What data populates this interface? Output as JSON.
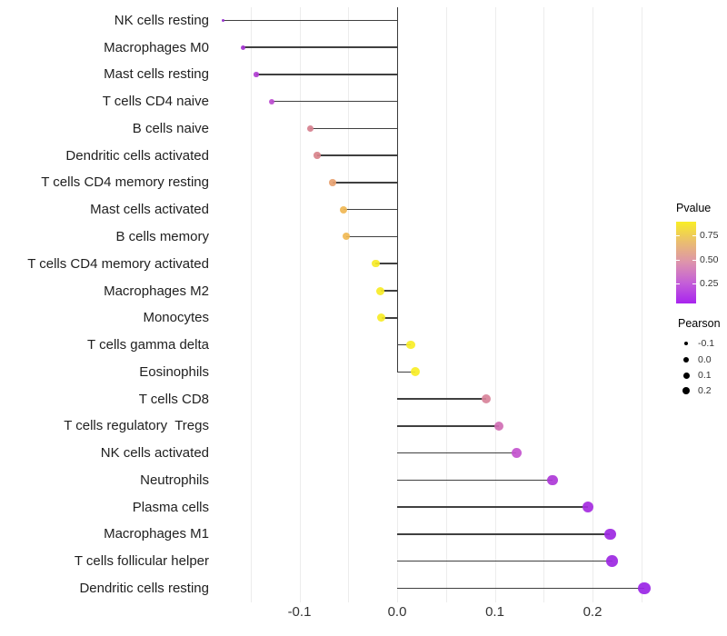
{
  "chart_data": {
    "type": "lollipop",
    "orientation": "horizontal",
    "title": "",
    "xlabel": "",
    "ylabel": "",
    "xlim": [
      -0.186,
      0.261
    ],
    "grid": true,
    "x_gridline_values": [
      -0.15,
      -0.1,
      -0.05,
      0.05,
      0.1,
      0.15,
      0.2,
      0.25
    ],
    "zero_axis_value": 0.0,
    "x_ticks": [
      {
        "value": -0.1,
        "label": "-0.1"
      },
      {
        "value": 0.0,
        "label": "0.0"
      },
      {
        "value": 0.1,
        "label": "0.1"
      },
      {
        "value": 0.2,
        "label": "0.2"
      }
    ],
    "categories": [
      "NK cells resting",
      "Macrophages M0",
      "Mast cells resting",
      "T cells CD4 naive",
      "B cells naive",
      "Dendritic cells activated",
      "T cells CD4 memory resting",
      "Mast cells activated",
      "B cells memory",
      "T cells CD4 memory activated",
      "Macrophages M2",
      "Monocytes",
      "T cells gamma delta",
      "Eosinophils",
      "T cells CD8",
      "T cells regulatory  Tregs",
      "NK cells activated",
      "Neutrophils",
      "Plasma cells",
      "Macrophages M1",
      "T cells follicular helper",
      "Dendritic cells resting"
    ],
    "series": [
      {
        "name": "Pearson",
        "values": [
          -0.178,
          -0.158,
          -0.144,
          -0.128,
          -0.089,
          -0.082,
          -0.066,
          -0.055,
          -0.052,
          -0.022,
          -0.017,
          -0.016,
          0.014,
          0.019,
          0.091,
          0.104,
          0.122,
          0.159,
          0.195,
          0.218,
          0.22,
          0.253
        ]
      }
    ],
    "point_colors": [
      "#9329cc",
      "#a534d2",
      "#b13ed2",
      "#bc4bd0",
      "#d6808e",
      "#d8838b",
      "#e8a271",
      "#f0b754",
      "#f0b854",
      "#f6ea28",
      "#f7ec26",
      "#f7ec26",
      "#f8ee26",
      "#f8ee26",
      "#d8839a",
      "#d06eb4",
      "#c352ce",
      "#ae38d8",
      "#a52be0",
      "#9d28e2",
      "#9c27e2",
      "#9a25e6"
    ],
    "point_sizes": [
      3,
      5,
      5.5,
      6,
      7,
      7.5,
      7.5,
      8,
      8,
      8.5,
      9,
      9,
      9.5,
      10,
      10,
      10.5,
      11,
      11.5,
      12,
      12.5,
      12.5,
      13.5
    ],
    "stem_color": "#404040",
    "gridline_color": "#ececec",
    "legend": {
      "position": "right",
      "pvalue": {
        "title": "Pvalue",
        "gradient_top_to_bottom": [
          "#f9ee26",
          "#eabd70",
          "#dd93ad",
          "#c45fd8",
          "#a824ee"
        ],
        "tick_labels": [
          "0.75",
          "0.50",
          "0.25"
        ]
      },
      "pearson": {
        "title": "Pearson",
        "items": [
          {
            "label": "-0.1",
            "size": 4.5
          },
          {
            "label": "0.0",
            "size": 6
          },
          {
            "label": "0.1",
            "size": 7
          },
          {
            "label": "0.2",
            "size": 8
          }
        ]
      }
    }
  }
}
